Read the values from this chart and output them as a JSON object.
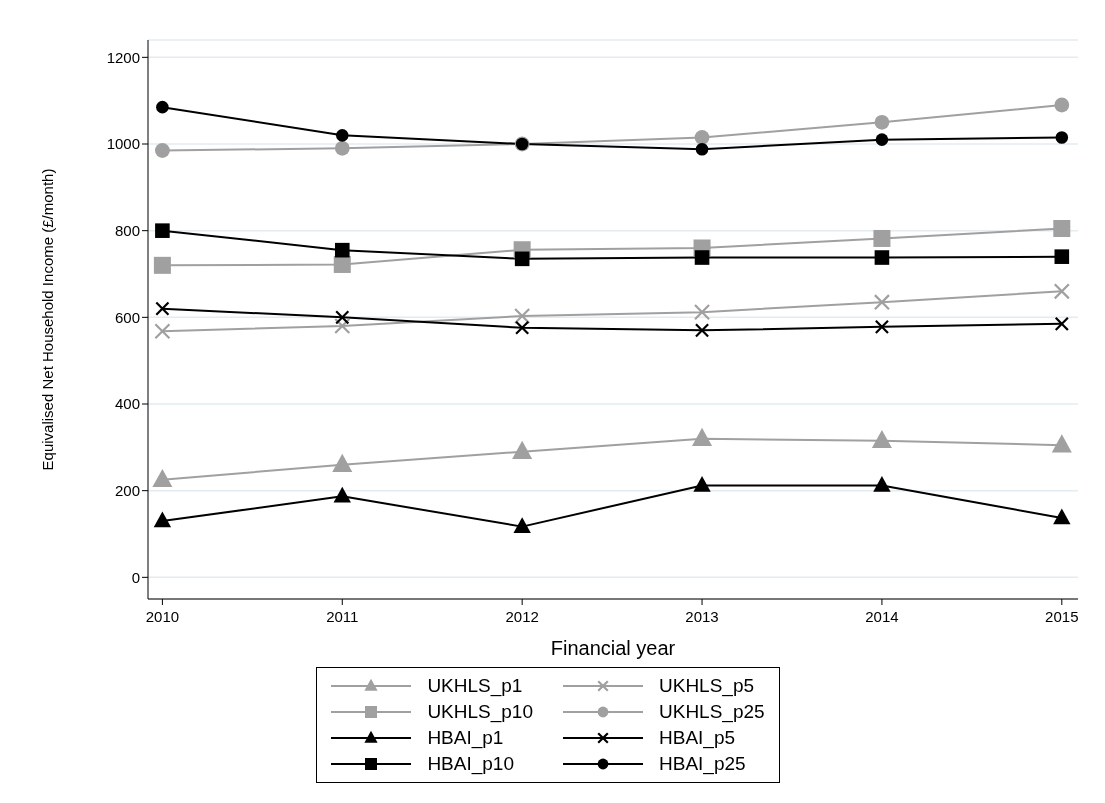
{
  "chart_data": {
    "type": "line",
    "xlabel": "Financial year",
    "ylabel": "Equivalised Net Household Income (£/month)",
    "x": [
      2010,
      2011,
      2012,
      2013,
      2014,
      2015
    ],
    "xlim": [
      2009.92,
      2015.09
    ],
    "xticks": [
      2010,
      2011,
      2012,
      2013,
      2014,
      2015
    ],
    "ylim": [
      -50,
      1240
    ],
    "yticks": [
      0,
      200,
      400,
      600,
      800,
      1000,
      1200
    ],
    "grid": "y",
    "legend": "bottom",
    "line_style": "solid",
    "series": [
      {
        "name": "UKHLS_p1",
        "color": "#a0a0a0",
        "marker": "triangle",
        "values": [
          225,
          260,
          290,
          320,
          315,
          305
        ]
      },
      {
        "name": "UKHLS_p5",
        "color": "#a0a0a0",
        "marker": "cross",
        "values": [
          568,
          580,
          603,
          612,
          635,
          660
        ]
      },
      {
        "name": "UKHLS_p10",
        "color": "#a0a0a0",
        "marker": "square",
        "values": [
          720,
          722,
          756,
          760,
          782,
          805
        ]
      },
      {
        "name": "UKHLS_p25",
        "color": "#a0a0a0",
        "marker": "circle",
        "values": [
          985,
          990,
          1000,
          1015,
          1050,
          1090
        ]
      },
      {
        "name": "HBAI_p1",
        "color": "#000000",
        "marker": "triangle",
        "values": [
          130,
          187,
          117,
          212,
          212,
          137
        ]
      },
      {
        "name": "HBAI_p5",
        "color": "#000000",
        "marker": "cross",
        "values": [
          620,
          600,
          576,
          570,
          578,
          585
        ]
      },
      {
        "name": "HBAI_p10",
        "color": "#000000",
        "marker": "square",
        "values": [
          800,
          755,
          735,
          738,
          738,
          740
        ]
      },
      {
        "name": "HBAI_p25",
        "color": "#000000",
        "marker": "circle",
        "values": [
          1085,
          1020,
          1000,
          988,
          1010,
          1015
        ]
      }
    ]
  }
}
